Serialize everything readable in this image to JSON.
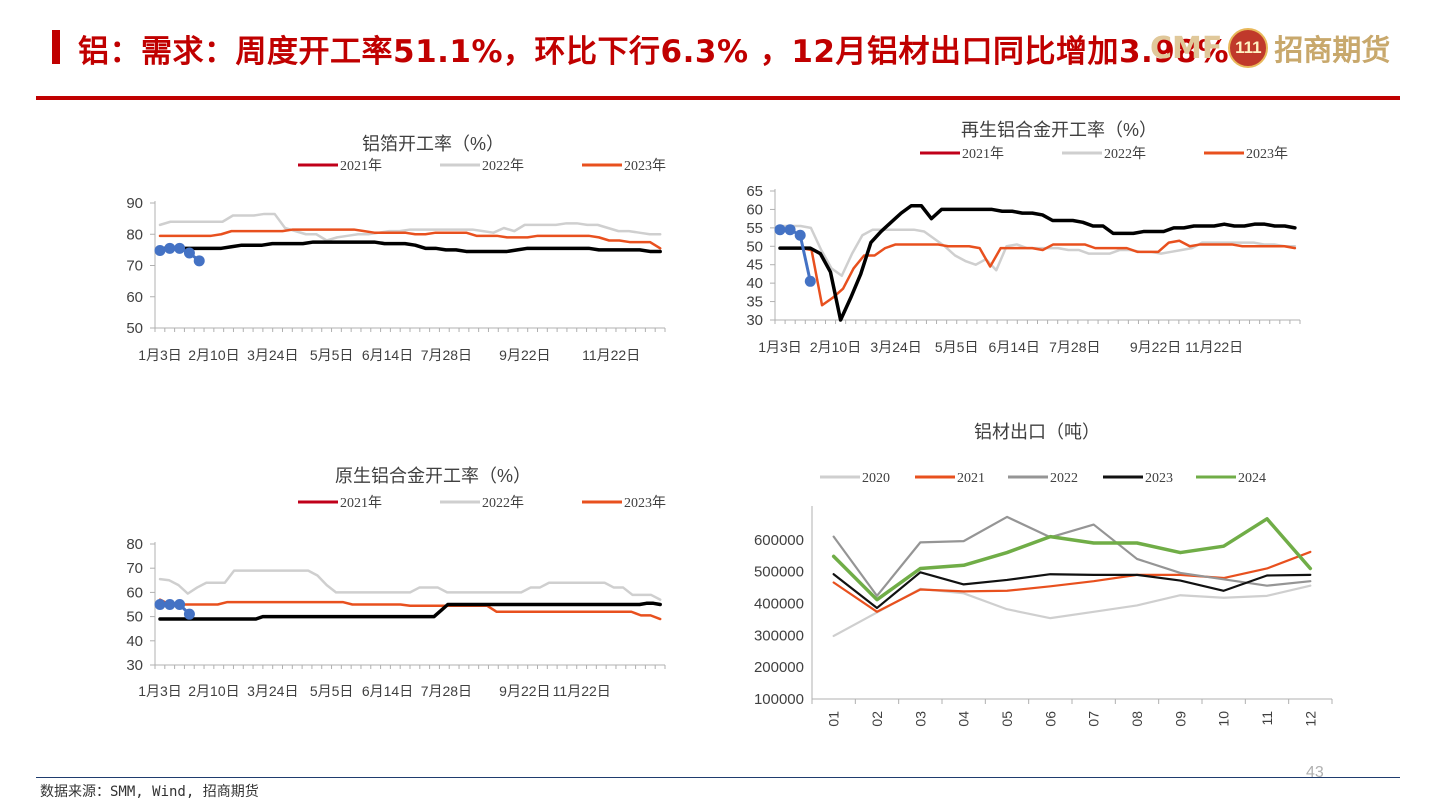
{
  "header": {
    "title": "铝：需求：周度开工率51.1%，环比下行6.3% ，12月铝材出口同比增加3.98%",
    "logo_letters": "CMF",
    "logo_emblem": "111",
    "logo_text": "招商期货"
  },
  "footer": {
    "source": "数据来源：SMM, Wind, 招商期货",
    "page_number": "43"
  },
  "colors": {
    "2020": "#cfcfcf",
    "2021_weekly": "#c0001a",
    "2021_monthly": "#e8501e",
    "2022_weekly": "#cfcfcf",
    "2022_monthly": "#959595",
    "2023_weekly": "#e8501e",
    "2023_monthly": "#111111",
    "2024_weekly_line": "#000000",
    "2024_weekly_points": "#4472c4",
    "2024_monthly": "#70ad47"
  },
  "chart_data": [
    {
      "id": "foil",
      "type": "line",
      "title": "铝箔开工率（%）",
      "x_tick_labels": [
        "1月3日",
        "2月10日",
        "3月24日",
        "5月5日",
        "6月14日",
        "7月28日",
        "9月22日",
        "11月22日"
      ],
      "x_tick_weeks": [
        0,
        5.5,
        11.5,
        17.5,
        23.2,
        29.2,
        37.2,
        46.0
      ],
      "ylim": [
        50,
        90
      ],
      "yticks": [
        50,
        60,
        70,
        80,
        90
      ],
      "legend": [
        "2021年",
        "2022年",
        "2023年"
      ],
      "series": [
        {
          "name": "2021年",
          "color_key": "2021_weekly",
          "values": []
        },
        {
          "name": "2022年",
          "color_key": "2022_weekly",
          "values": [
            83,
            84,
            84,
            84,
            84,
            84,
            84,
            86,
            86,
            86,
            86.5,
            86.5,
            82,
            81,
            80,
            80,
            78,
            79,
            79.5,
            80,
            80,
            80.5,
            81,
            81,
            81.5,
            81.5,
            81.5,
            81.5,
            81.5,
            81.5,
            81.5,
            81,
            80.5,
            82,
            81,
            83,
            83,
            83,
            83,
            83.5,
            83.5,
            83,
            83,
            82,
            81,
            81,
            80.5,
            80,
            80
          ]
        },
        {
          "name": "2023年",
          "color_key": "2023_weekly",
          "values": [
            79.5,
            79.5,
            79.5,
            79.5,
            79.5,
            79.5,
            80,
            81,
            81,
            81,
            81,
            81,
            81,
            81.5,
            81.5,
            81.5,
            81.5,
            81.5,
            81.5,
            81.5,
            81,
            80.5,
            80.5,
            80.5,
            80.5,
            80,
            80,
            80.5,
            80.5,
            80.5,
            80.5,
            79.5,
            79.5,
            79.5,
            79,
            79,
            79,
            79.5,
            79.5,
            79.5,
            79.5,
            79.5,
            79.5,
            79,
            78,
            78,
            77.5,
            77.5,
            77.5,
            75.5
          ]
        },
        {
          "name": "2024 line",
          "color_key": "2024_weekly_line",
          "values": [
            75.5,
            75.5,
            75.5,
            75.5,
            75.5,
            75.5,
            75.5,
            76,
            76.5,
            76.5,
            76.5,
            77,
            77,
            77,
            77,
            77.5,
            77.5,
            77.5,
            77.5,
            77.5,
            77.5,
            77.5,
            77,
            77,
            77,
            76.5,
            75.5,
            75.5,
            75,
            75,
            74.5,
            74.5,
            74.5,
            74.5,
            74.5,
            75,
            75.5,
            75.5,
            75.5,
            75.5,
            75.5,
            75.5,
            75.5,
            75,
            75,
            75,
            75,
            75,
            74.5,
            74.5
          ]
        },
        {
          "name": "2024 points",
          "color_key": "2024_weekly_points",
          "marker": true,
          "values": [
            74.8,
            75.5,
            75.5,
            74,
            71.5
          ]
        }
      ]
    },
    {
      "id": "recycled",
      "type": "line",
      "title": "再生铝合金开工率（%）",
      "x_tick_labels": [
        "1月3日",
        "2月10日",
        "3月24日",
        "5月5日",
        "6月14日",
        "7月28日",
        "9月22日",
        "11月22日"
      ],
      "x_tick_weeks": [
        0,
        5.5,
        11.5,
        17.5,
        23.2,
        29.2,
        37.2,
        43.0
      ],
      "ylim": [
        30,
        65
      ],
      "yticks": [
        30,
        35,
        40,
        45,
        50,
        55,
        60,
        65
      ],
      "legend": [
        "2021年",
        "2022年",
        "2023年"
      ],
      "series": [
        {
          "name": "2021年",
          "color_key": "2021_weekly",
          "values": []
        },
        {
          "name": "2022年",
          "color_key": "2022_weekly",
          "values": [
            55.5,
            55.5,
            55.5,
            55,
            49,
            44,
            42,
            48,
            53,
            54.5,
            54.5,
            54.5,
            54.5,
            54.5,
            54,
            52,
            50,
            47.5,
            46,
            45,
            46.5,
            43.5,
            50,
            50.5,
            49.5,
            49.5,
            49.5,
            49.5,
            49,
            49,
            48,
            48,
            48,
            49,
            49,
            48.5,
            48.5,
            48,
            48.5,
            49,
            49.5,
            51,
            51,
            51,
            51,
            51,
            51,
            50.5,
            50.5,
            50,
            50
          ]
        },
        {
          "name": "2023年",
          "color_key": "2023_weekly",
          "values": [
            49.5,
            49.5,
            49.5,
            49,
            34,
            36,
            38.5,
            44,
            47.5,
            47.5,
            49.5,
            50.5,
            50.5,
            50.5,
            50.5,
            50.5,
            50,
            50,
            50,
            49.5,
            44.5,
            49.5,
            49.5,
            49.5,
            49.5,
            49,
            50.5,
            50.5,
            50.5,
            50.5,
            49.5,
            49.5,
            49.5,
            49.5,
            48.5,
            48.5,
            48.5,
            51,
            51.5,
            50,
            50.5,
            50.5,
            50.5,
            50.5,
            50,
            50,
            50,
            50,
            50,
            49.5
          ]
        },
        {
          "name": "2024 line",
          "color_key": "2024_weekly_line",
          "values": [
            49.5,
            49.5,
            49.5,
            49.5,
            48,
            43,
            30,
            36,
            42.5,
            51,
            54,
            56.5,
            59,
            61,
            61,
            57.5,
            60,
            60,
            60,
            60,
            60,
            60,
            59.5,
            59.5,
            59,
            59,
            58.5,
            57,
            57,
            57,
            56.5,
            55.5,
            55.5,
            53.5,
            53.5,
            53.5,
            54,
            54,
            54,
            55,
            55,
            55.5,
            55.5,
            55.5,
            56,
            55.5,
            55.5,
            56,
            56,
            55.5,
            55.5,
            55
          ]
        },
        {
          "name": "2024 points",
          "color_key": "2024_weekly_points",
          "marker": true,
          "values": [
            54.5,
            54.5,
            53,
            40.5
          ]
        }
      ]
    },
    {
      "id": "primary",
      "type": "line",
      "title": "原生铝合金开工率（%）",
      "x_tick_labels": [
        "1月3日",
        "2月10日",
        "3月24日",
        "5月5日",
        "6月14日",
        "7月28日",
        "9月22日",
        "11月22日"
      ],
      "x_tick_weeks": [
        0,
        5.5,
        11.5,
        17.5,
        23.2,
        29.2,
        37.2,
        43.0
      ],
      "ylim": [
        30,
        80
      ],
      "yticks": [
        30,
        40,
        50,
        60,
        70,
        80
      ],
      "legend": [
        "2021年",
        "2022年",
        "2023年"
      ],
      "series": [
        {
          "name": "2021年",
          "color_key": "2021_weekly",
          "values": []
        },
        {
          "name": "2022年",
          "color_key": "2022_weekly",
          "values": [
            65.5,
            65,
            63,
            59.5,
            62,
            64,
            64,
            64,
            69,
            69,
            69,
            69,
            69,
            69,
            69,
            69,
            69,
            67,
            63,
            60,
            60,
            60,
            60,
            60,
            60,
            60,
            60,
            60,
            62,
            62,
            62,
            60,
            60,
            60,
            60,
            60,
            60,
            60,
            60,
            60,
            62,
            62,
            64,
            64,
            64,
            64,
            64,
            64,
            64,
            62,
            62,
            59,
            59,
            59,
            57
          ]
        },
        {
          "name": "2023年",
          "color_key": "2023_weekly",
          "values": [
            57,
            55,
            55,
            55,
            55,
            55,
            55,
            56,
            56,
            56,
            56,
            56,
            56,
            56,
            56,
            56,
            56,
            56,
            56,
            56,
            55,
            55,
            55,
            55,
            55,
            55,
            54.5,
            54.5,
            54.5,
            54.5,
            54.5,
            54.5,
            54.5,
            54.5,
            54.5,
            52,
            52,
            52,
            52,
            52,
            52,
            52,
            52,
            52,
            52,
            52,
            52,
            52,
            52,
            52,
            50.5,
            50.5,
            49
          ]
        },
        {
          "name": "2024 line",
          "color_key": "2024_weekly_line",
          "values": [
            49,
            49,
            49,
            49,
            49,
            49,
            49,
            49,
            49,
            49,
            49,
            49,
            49,
            49,
            49,
            50,
            50,
            50,
            50,
            50,
            50,
            50,
            50,
            50,
            50,
            50,
            50,
            50,
            50,
            50,
            50,
            50,
            50,
            50,
            50,
            50,
            50,
            50,
            50,
            50,
            50,
            52.5,
            55,
            55,
            55,
            55,
            55,
            55,
            55,
            55,
            55,
            55,
            55,
            55,
            55,
            55,
            55,
            55,
            55,
            55,
            55,
            55,
            55,
            55,
            55,
            55,
            55,
            55,
            55,
            55,
            55,
            55.5,
            55.5,
            55
          ]
        },
        {
          "name": "2024 points",
          "color_key": "2024_weekly_points",
          "marker": true,
          "values": [
            55,
            55,
            55,
            51
          ]
        }
      ]
    },
    {
      "id": "export",
      "type": "line",
      "title": "铝材出口（吨）",
      "categories": [
        "01",
        "02",
        "03",
        "04",
        "05",
        "06",
        "07",
        "08",
        "09",
        "10",
        "11",
        "12"
      ],
      "ylim": [
        100000,
        700000
      ],
      "yticks": [
        100000,
        200000,
        300000,
        400000,
        500000,
        600000
      ],
      "legend": [
        "2020",
        "2021",
        "2022",
        "2023",
        "2024"
      ],
      "series": [
        {
          "name": "2020",
          "color_key": "2020",
          "values": [
            298000,
            372000,
            446000,
            432000,
            382000,
            354000,
            374000,
            394000,
            426000,
            418000,
            424000,
            456000
          ]
        },
        {
          "name": "2021",
          "color_key": "2021_monthly",
          "values": [
            466000,
            374000,
            444000,
            438000,
            440000,
            454000,
            470000,
            490000,
            490000,
            480000,
            510000,
            562000
          ]
        },
        {
          "name": "2022",
          "color_key": "2022_monthly",
          "values": [
            610000,
            424000,
            592000,
            596000,
            672000,
            608000,
            648000,
            540000,
            496000,
            476000,
            456000,
            470000
          ]
        },
        {
          "name": "2023",
          "color_key": "2023_monthly",
          "values": [
            492000,
            386000,
            498000,
            460000,
            474000,
            492000,
            490000,
            490000,
            472000,
            440000,
            488000,
            490000
          ]
        },
        {
          "name": "2024",
          "color_key": "2024_monthly",
          "values": [
            548000,
            412000,
            510000,
            520000,
            560000,
            610000,
            590000,
            590000,
            560000,
            580000,
            666000,
            510000
          ]
        }
      ]
    }
  ]
}
